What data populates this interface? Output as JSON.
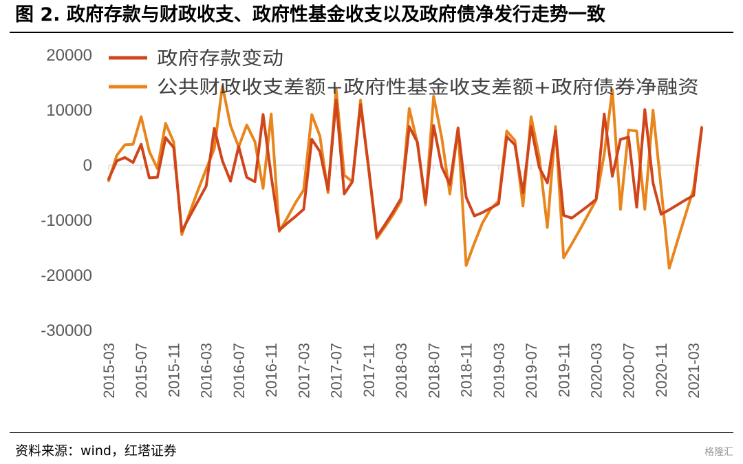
{
  "title": "图 2. 政府存款与财政收支、政府性基金收支以及政府债净发行走势一致",
  "source": "资料来源：wind，红塔证券",
  "watermark": "格隆汇",
  "chart_data": {
    "type": "line",
    "title": "图 2. 政府存款与财政收支、政府性基金收支以及政府债净发行走势一致",
    "xlabel": "",
    "ylabel": "",
    "ylim": [
      -30000,
      20000
    ],
    "yticks": [
      20000,
      10000,
      0,
      -10000,
      -20000,
      -30000
    ],
    "ytick_labels": [
      "20000",
      "10000",
      "0",
      "-10000",
      "-20000",
      "-30000"
    ],
    "grid": false,
    "legend_position": "top-left",
    "x": [
      "2015-03",
      "2015-04",
      "2015-05",
      "2015-06",
      "2015-07",
      "2015-08",
      "2015-09",
      "2015-10",
      "2015-11",
      "2015-12",
      "2016-01",
      "2016-02",
      "2016-03",
      "2016-04",
      "2016-05",
      "2016-06",
      "2016-07",
      "2016-08",
      "2016-09",
      "2016-10",
      "2016-11",
      "2016-12",
      "2017-01",
      "2017-02",
      "2017-03",
      "2017-04",
      "2017-05",
      "2017-06",
      "2017-07",
      "2017-08",
      "2017-09",
      "2017-10",
      "2017-11",
      "2017-12",
      "2018-01",
      "2018-02",
      "2018-03",
      "2018-04",
      "2018-05",
      "2018-06",
      "2018-07",
      "2018-08",
      "2018-09",
      "2018-10",
      "2018-11",
      "2018-12",
      "2019-01",
      "2019-02",
      "2019-03",
      "2019-04",
      "2019-05",
      "2019-06",
      "2019-07",
      "2019-08",
      "2019-09",
      "2019-10",
      "2019-11",
      "2019-12",
      "2020-01",
      "2020-02",
      "2020-03",
      "2020-04",
      "2020-05",
      "2020-06",
      "2020-07",
      "2020-08",
      "2020-09",
      "2020-10",
      "2020-11",
      "2020-12",
      "2021-01",
      "2021-02",
      "2021-03",
      "2021-04"
    ],
    "xtick_labels": [
      "2015-03",
      "2015-07",
      "2015-11",
      "2016-03",
      "2016-07",
      "2016-11",
      "2017-03",
      "2017-07",
      "2017-11",
      "2018-03",
      "2018-07",
      "2018-11",
      "2019-03",
      "2019-07",
      "2019-11",
      "2020-03",
      "2020-07",
      "2020-11",
      "2021-03"
    ],
    "series": [
      {
        "name": "政府存款变动",
        "color": "#D0451B",
        "values": [
          -2500,
          800,
          1400,
          500,
          3800,
          -2300,
          -2200,
          5000,
          3200,
          -12000,
          -9200,
          -6500,
          -3800,
          6700,
          800,
          -2900,
          3400,
          -2200,
          -3000,
          9200,
          -2000,
          -11800,
          -10500,
          -9300,
          -8000,
          4700,
          2500,
          -4500,
          11800,
          -5200,
          -3000,
          11000,
          -500,
          -13000,
          -10800,
          -8500,
          -6000,
          7000,
          4200,
          -6800,
          7200,
          -300,
          -3500,
          6700,
          -5800,
          -9200,
          -8600,
          -7800,
          -7000,
          5200,
          3700,
          -5000,
          7000,
          -400,
          -3200,
          6200,
          -9100,
          -9600,
          -8500,
          -7400,
          -6200,
          9300,
          -2000,
          4700,
          5100,
          -7600,
          10100,
          -3200,
          -8900,
          -8100,
          -7200,
          -6300,
          -5500,
          6700
        ]
      },
      {
        "name": "公共财政收支差额+政府性基金收支差额+政府债券净融资",
        "color": "#E8851C",
        "values": [
          -2800,
          1800,
          3700,
          3800,
          8800,
          2500,
          -600,
          7600,
          4200,
          -12600,
          -8500,
          -4500,
          -700,
          3000,
          14400,
          7200,
          3300,
          7300,
          4300,
          -4200,
          9300,
          -12000,
          -9500,
          -6800,
          -4500,
          9200,
          5300,
          -5000,
          13800,
          -1800,
          -3000,
          11800,
          -800,
          -13300,
          -11200,
          -9000,
          -6500,
          10300,
          4000,
          -7200,
          12500,
          5000,
          -5200,
          6800,
          -18200,
          -14200,
          -10500,
          -8000,
          -6500,
          6200,
          4500,
          -7400,
          8800,
          1500,
          -11300,
          7000,
          -16800,
          -14300,
          -11700,
          -9000,
          -6300,
          2000,
          13700,
          -8000,
          6400,
          6200,
          -8000,
          10000,
          -4200,
          -18700,
          -13800,
          -9000,
          -4300,
          6900
        ]
      }
    ]
  }
}
